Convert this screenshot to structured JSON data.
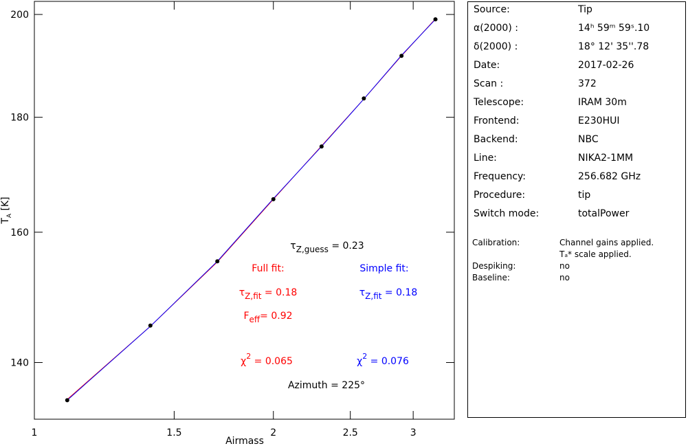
{
  "chart_data": {
    "type": "scatter",
    "x_label": "Airmass",
    "y_label": {
      "main": "T",
      "sub": "A",
      "rest": " [K]"
    },
    "x": [
      1.1,
      1.4,
      1.7,
      2.0,
      2.3,
      2.6,
      2.9,
      3.2
    ],
    "series": [
      {
        "color": "#000000",
        "values": [
          134.7,
          145.4,
          155.3,
          165.5,
          174.7,
          183.5,
          191.7,
          199.0
        ]
      },
      {
        "color": "#ff0000",
        "line": true,
        "values": [
          134.8,
          145.3,
          155.2,
          165.5,
          174.8,
          183.4,
          191.7,
          199.1
        ]
      },
      {
        "color": "#0000ff",
        "line": true,
        "values": [
          134.7,
          145.3,
          155.3,
          165.6,
          174.7,
          183.4,
          191.8,
          199.0
        ]
      }
    ],
    "xlim": [
      1,
      3.38
    ],
    "ylim": [
      132.1,
      202.7
    ],
    "x_log": true,
    "y_log": true,
    "xticks": [
      1,
      1.5,
      2,
      2.5,
      3
    ],
    "yticks": [
      140,
      160,
      180,
      200
    ],
    "annotations": [
      {
        "color": "#000000",
        "symbol": "τ",
        "sub": "Z,guess",
        "text": " = 0.23"
      },
      {
        "color": "#ff0000",
        "text": "Full fit:"
      },
      {
        "color": "#0000ff",
        "text": "Simple fit:"
      },
      {
        "color": "#ff0000",
        "symbol": "τ",
        "sub": "Z,fit",
        "text": " = 0.18"
      },
      {
        "color": "#0000ff",
        "symbol": "τ",
        "sub": "Z,fit",
        "text": " = 0.18"
      },
      {
        "color": "#ff0000",
        "symbol": "F",
        "sub": "eff",
        "text": "= 0.92"
      },
      {
        "color": "#ff0000",
        "symbol": "χ",
        "sup": "2",
        "text": " = 0.065"
      },
      {
        "color": "#0000ff",
        "symbol": "χ",
        "sup": "2",
        "text": " = 0.076"
      },
      {
        "color": "#000000",
        "text": "Azimuth = 225°"
      }
    ]
  },
  "info_panel": {
    "rows": [
      [
        "Source:",
        "Tip"
      ],
      [
        "α(2000) :",
        "14ʰ 59ᵐ 59ˢ.10"
      ],
      [
        "δ(2000) :",
        "18° 12' 35''.78"
      ],
      [
        "Date:",
        "2017-02-26"
      ],
      [
        "Scan :",
        "372"
      ],
      [
        "Telescope:",
        "IRAM 30m"
      ],
      [
        "Frontend:",
        "E230HUI"
      ],
      [
        "Backend:",
        "NBC"
      ],
      [
        "Line:",
        "NIKA2-1MM"
      ],
      [
        "Frequency:",
        "256.682 GHz"
      ],
      [
        "Procedure:",
        "tip"
      ],
      [
        "Switch mode:",
        "totalPower"
      ]
    ],
    "notes": [
      [
        "Calibration:",
        "Channel gains applied."
      ],
      [
        "",
        "Tₐ* scale applied."
      ],
      [
        "Despiking:",
        "no"
      ],
      [
        "Baseline:",
        "no"
      ]
    ]
  }
}
